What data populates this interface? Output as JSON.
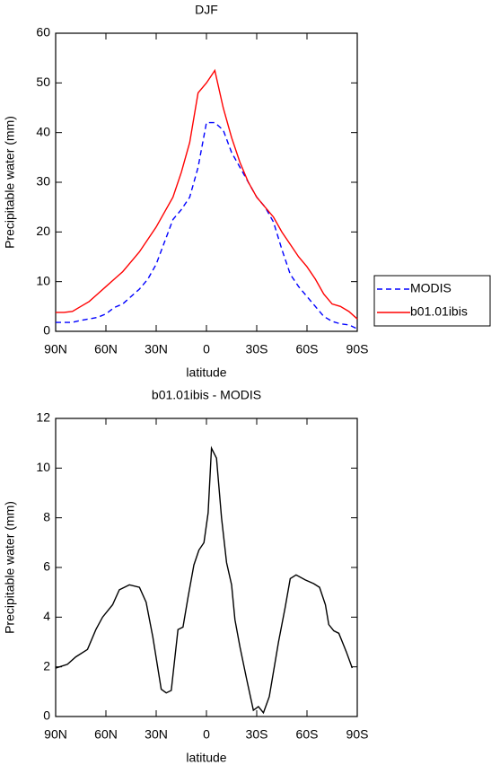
{
  "chart_data": [
    {
      "type": "line",
      "title": "DJF",
      "xlabel": "latitude",
      "ylabel": "Precipitable water (mm)",
      "x": [
        90,
        85,
        80,
        75,
        70,
        65,
        60,
        55,
        50,
        45,
        40,
        35,
        30,
        25,
        20,
        15,
        10,
        5,
        0,
        -5,
        -10,
        -15,
        -20,
        -25,
        -30,
        -35,
        -40,
        -45,
        -50,
        -55,
        -60,
        -65,
        -70,
        -75,
        -80,
        -85,
        -90
      ],
      "series": [
        {
          "name": "MODIS",
          "color": "#0000ff",
          "linestyle": "dashed",
          "values": [
            1.8,
            1.8,
            1.8,
            2.2,
            2.5,
            2.8,
            3.5,
            4.8,
            5.5,
            7,
            8.5,
            10.5,
            13.5,
            18,
            22.5,
            24.5,
            27,
            33,
            42,
            42,
            40.5,
            36,
            33,
            30,
            27,
            25,
            22,
            16.5,
            11.5,
            9,
            7,
            5,
            3,
            2,
            1.5,
            1.3,
            0.5
          ]
        },
        {
          "name": "b01.01ibis",
          "color": "#ff0000",
          "linestyle": "solid",
          "values": [
            3.8,
            3.8,
            4,
            5,
            6,
            7.5,
            9,
            10.5,
            12,
            14,
            16,
            18.5,
            21,
            24,
            27,
            32,
            38,
            48,
            50,
            52.5,
            45,
            39,
            34,
            30,
            27,
            25,
            23,
            20,
            17.5,
            15,
            13,
            10.5,
            7.5,
            5.5,
            5,
            4,
            2.5
          ]
        }
      ],
      "xlim": [
        90,
        -90
      ],
      "xticks": [
        {
          "value": 90,
          "label": "90N"
        },
        {
          "value": 60,
          "label": "60N"
        },
        {
          "value": 30,
          "label": "30N"
        },
        0,
        {
          "value": -30,
          "label": "30S"
        },
        {
          "value": -60,
          "label": "60S"
        },
        {
          "value": -90,
          "label": "90S"
        }
      ],
      "ylim": [
        0,
        60
      ],
      "yticks": [
        0,
        10,
        20,
        30,
        40,
        50,
        60
      ],
      "legend": "right"
    },
    {
      "type": "line",
      "title": "b01.01ibis - MODIS",
      "xlabel": "latitude",
      "ylabel": "Precipitable water (mm)",
      "x": [
        90,
        83,
        78,
        71,
        66,
        62,
        56,
        52,
        46,
        40,
        36,
        32,
        27,
        24,
        21,
        17,
        14,
        11,
        7.5,
        4.5,
        1.5,
        -1,
        -3,
        -6,
        -9,
        -12,
        -15,
        -17,
        -20,
        -24,
        -28,
        -31,
        -34,
        -37.5,
        -43,
        -47,
        -50,
        -53.5,
        -59,
        -64,
        -67.5,
        -71,
        -73,
        -76,
        -79,
        -83.5,
        -87
      ],
      "color": "#000000",
      "values": [
        1.95,
        2.1,
        2.4,
        2.7,
        3.5,
        4,
        4.5,
        5.1,
        5.3,
        5.2,
        4.6,
        3.2,
        1.1,
        0.95,
        1.05,
        3.5,
        3.6,
        4.8,
        6.1,
        6.7,
        7,
        8.2,
        10.8,
        10.4,
        8,
        6.2,
        5.3,
        3.9,
        2.8,
        1.5,
        0.25,
        0.4,
        0.15,
        0.8,
        3,
        4.4,
        5.55,
        5.7,
        5.5,
        5.35,
        5.2,
        4.5,
        3.7,
        3.45,
        3.35,
        2.6,
        1.95
      ],
      "xlim": [
        90,
        -90
      ],
      "xticks": [
        {
          "value": 90,
          "label": "90N"
        },
        {
          "value": 60,
          "label": "60N"
        },
        {
          "value": 30,
          "label": "30N"
        },
        0,
        {
          "value": -30,
          "label": "30S"
        },
        {
          "value": -60,
          "label": "60S"
        },
        {
          "value": -90,
          "label": "90S"
        }
      ],
      "ylim": [
        0,
        12
      ],
      "yticks": [
        0,
        2,
        4,
        6,
        8,
        10,
        12
      ]
    }
  ]
}
